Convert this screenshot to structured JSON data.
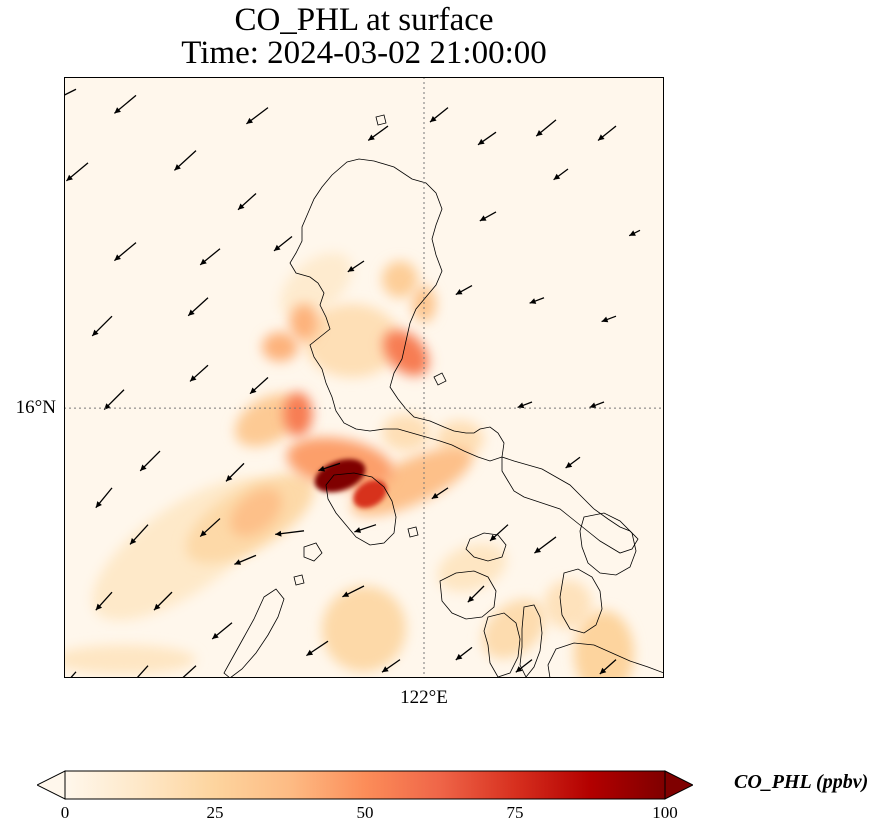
{
  "chart_data": {
    "type": "heatmap",
    "title": [
      "CO_PHL at surface",
      "Time: 2024-03-02 21:00:00"
    ],
    "xticks": [
      {
        "value": 122,
        "label": "122°E"
      }
    ],
    "yticks": [
      {
        "value": 16,
        "label": "16°N"
      }
    ],
    "xlim": [
      119.0,
      124.0
    ],
    "ylim": [
      13.8,
      18.7
    ],
    "grid": true,
    "colormap": "OrRd",
    "colorbar": {
      "label": "CO_PHL (ppbv)",
      "vmin": 0,
      "vmax": 100,
      "ticks": [
        0,
        25,
        50,
        75,
        100
      ],
      "extend": "both",
      "stops": [
        "#fff7ec",
        "#fee8c8",
        "#fdd49e",
        "#fdbb84",
        "#fc8d59",
        "#ef6548",
        "#d7301f",
        "#b30000",
        "#7f0000"
      ]
    },
    "plumes": [
      {
        "lon": 121.9,
        "lat": 15.4,
        "sx": 0.55,
        "sy": 0.18,
        "rot": -25,
        "value": 35
      },
      {
        "lon": 121.3,
        "lat": 15.55,
        "sx": 0.45,
        "sy": 0.2,
        "rot": 10,
        "value": 45
      },
      {
        "lon": 120.55,
        "lat": 15.1,
        "sx": 0.6,
        "sy": 0.25,
        "rot": -30,
        "value": 22
      },
      {
        "lon": 120.0,
        "lat": 14.85,
        "sx": 0.9,
        "sy": 0.35,
        "rot": -35,
        "value": 12
      },
      {
        "lon": 121.4,
        "lat": 16.55,
        "sx": 0.4,
        "sy": 0.3,
        "rot": 0,
        "value": 18
      },
      {
        "lon": 121.1,
        "lat": 17.0,
        "sx": 0.35,
        "sy": 0.2,
        "rot": -40,
        "value": 10
      },
      {
        "lon": 121.85,
        "lat": 16.45,
        "sx": 0.15,
        "sy": 0.22,
        "rot": -45,
        "value": 55
      },
      {
        "lon": 121.8,
        "lat": 17.05,
        "sx": 0.15,
        "sy": 0.15,
        "rot": 0,
        "value": 28
      },
      {
        "lon": 121.5,
        "lat": 14.2,
        "sx": 0.35,
        "sy": 0.35,
        "rot": 20,
        "value": 22
      },
      {
        "lon": 122.75,
        "lat": 14.2,
        "sx": 0.3,
        "sy": 0.2,
        "rot": -40,
        "value": 20
      },
      {
        "lon": 123.5,
        "lat": 14.0,
        "sx": 0.25,
        "sy": 0.35,
        "rot": 0,
        "value": 25
      },
      {
        "lon": 119.5,
        "lat": 13.95,
        "sx": 0.6,
        "sy": 0.12,
        "rot": 0,
        "value": 14
      },
      {
        "lon": 121.85,
        "lat": 15.8,
        "sx": 0.2,
        "sy": 0.15,
        "rot": 0,
        "value": 18
      },
      {
        "lon": 120.95,
        "lat": 15.95,
        "sx": 0.12,
        "sy": 0.18,
        "rot": 0,
        "value": 55
      },
      {
        "lon": 120.7,
        "lat": 15.9,
        "sx": 0.3,
        "sy": 0.18,
        "rot": -30,
        "value": 30
      },
      {
        "lon": 121.0,
        "lat": 16.7,
        "sx": 0.12,
        "sy": 0.15,
        "rot": 0,
        "value": 40
      },
      {
        "lon": 122.0,
        "lat": 16.85,
        "sx": 0.1,
        "sy": 0.15,
        "rot": 0,
        "value": 32
      },
      {
        "lon": 121.3,
        "lat": 15.45,
        "sx": 0.22,
        "sy": 0.12,
        "rot": -20,
        "value": 100
      },
      {
        "lon": 121.55,
        "lat": 15.3,
        "sx": 0.15,
        "sy": 0.1,
        "rot": -30,
        "value": 75
      },
      {
        "lon": 122.3,
        "lat": 15.75,
        "sx": 0.2,
        "sy": 0.15,
        "rot": 0,
        "value": 18
      },
      {
        "lon": 122.4,
        "lat": 14.7,
        "sx": 0.3,
        "sy": 0.18,
        "rot": -20,
        "value": 14
      },
      {
        "lon": 123.2,
        "lat": 14.4,
        "sx": 0.2,
        "sy": 0.2,
        "rot": 0,
        "value": 16
      },
      {
        "lon": 120.6,
        "lat": 15.15,
        "sx": 0.25,
        "sy": 0.15,
        "rot": -40,
        "value": 35
      },
      {
        "lon": 120.8,
        "lat": 16.5,
        "sx": 0.15,
        "sy": 0.12,
        "rot": 0,
        "value": 40
      }
    ],
    "wind_vectors": [
      {
        "lon": 119.1,
        "lat": 18.6,
        "u": -1.0,
        "v": -0.5
      },
      {
        "lon": 119.6,
        "lat": 18.55,
        "u": -1.2,
        "v": -1.0
      },
      {
        "lon": 120.7,
        "lat": 18.45,
        "u": -1.2,
        "v": -0.9
      },
      {
        "lon": 121.7,
        "lat": 18.3,
        "u": -1.1,
        "v": -0.8
      },
      {
        "lon": 122.2,
        "lat": 18.45,
        "u": -1.0,
        "v": -0.8
      },
      {
        "lon": 122.6,
        "lat": 18.25,
        "u": -1.0,
        "v": -0.7
      },
      {
        "lon": 123.1,
        "lat": 18.35,
        "u": -1.1,
        "v": -0.9
      },
      {
        "lon": 123.6,
        "lat": 18.3,
        "u": -1.0,
        "v": -0.8
      },
      {
        "lon": 119.2,
        "lat": 18.0,
        "u": -1.2,
        "v": -1.0
      },
      {
        "lon": 120.1,
        "lat": 18.1,
        "u": -1.2,
        "v": -1.1
      },
      {
        "lon": 120.6,
        "lat": 17.75,
        "u": -1.0,
        "v": -0.9
      },
      {
        "lon": 122.6,
        "lat": 17.6,
        "u": -0.9,
        "v": -0.5
      },
      {
        "lon": 123.2,
        "lat": 17.95,
        "u": -0.8,
        "v": -0.6
      },
      {
        "lon": 123.8,
        "lat": 17.45,
        "u": -0.6,
        "v": -0.3
      },
      {
        "lon": 119.6,
        "lat": 17.35,
        "u": -1.2,
        "v": -1.0
      },
      {
        "lon": 120.3,
        "lat": 17.3,
        "u": -1.1,
        "v": -0.9
      },
      {
        "lon": 120.9,
        "lat": 17.4,
        "u": -1.0,
        "v": -0.8
      },
      {
        "lon": 121.5,
        "lat": 17.2,
        "u": -0.9,
        "v": -0.6
      },
      {
        "lon": 122.4,
        "lat": 17.0,
        "u": -0.9,
        "v": -0.5
      },
      {
        "lon": 123.0,
        "lat": 16.9,
        "u": -0.8,
        "v": -0.3
      },
      {
        "lon": 123.6,
        "lat": 16.75,
        "u": -0.8,
        "v": -0.3
      },
      {
        "lon": 119.4,
        "lat": 16.75,
        "u": -1.1,
        "v": -1.1
      },
      {
        "lon": 120.2,
        "lat": 16.9,
        "u": -1.1,
        "v": -1.0
      },
      {
        "lon": 119.5,
        "lat": 16.15,
        "u": -1.1,
        "v": -1.1
      },
      {
        "lon": 120.2,
        "lat": 16.35,
        "u": -1.0,
        "v": -0.9
      },
      {
        "lon": 120.7,
        "lat": 16.25,
        "u": -1.0,
        "v": -0.9
      },
      {
        "lon": 122.9,
        "lat": 16.05,
        "u": -0.8,
        "v": -0.3
      },
      {
        "lon": 123.5,
        "lat": 16.05,
        "u": -0.8,
        "v": -0.3
      },
      {
        "lon": 119.8,
        "lat": 15.65,
        "u": -1.1,
        "v": -1.1
      },
      {
        "lon": 120.5,
        "lat": 15.55,
        "u": -1.0,
        "v": -1.0
      },
      {
        "lon": 121.3,
        "lat": 15.55,
        "u": -1.2,
        "v": -0.4
      },
      {
        "lon": 122.2,
        "lat": 15.35,
        "u": -0.9,
        "v": -0.6
      },
      {
        "lon": 123.3,
        "lat": 15.6,
        "u": -0.8,
        "v": -0.6
      },
      {
        "lon": 119.4,
        "lat": 15.35,
        "u": -0.9,
        "v": -1.1
      },
      {
        "lon": 119.7,
        "lat": 15.05,
        "u": -1.0,
        "v": -1.1
      },
      {
        "lon": 120.3,
        "lat": 15.1,
        "u": -1.1,
        "v": -1.0
      },
      {
        "lon": 121.0,
        "lat": 15.0,
        "u": -1.6,
        "v": -0.2
      },
      {
        "lon": 121.6,
        "lat": 15.05,
        "u": -1.2,
        "v": -0.4
      },
      {
        "lon": 123.1,
        "lat": 14.95,
        "u": -1.2,
        "v": -0.9
      },
      {
        "lon": 120.6,
        "lat": 14.8,
        "u": -1.2,
        "v": -0.5
      },
      {
        "lon": 121.5,
        "lat": 14.55,
        "u": -1.2,
        "v": -0.6
      },
      {
        "lon": 122.5,
        "lat": 14.55,
        "u": -0.9,
        "v": -0.9
      },
      {
        "lon": 119.4,
        "lat": 14.5,
        "u": -0.9,
        "v": -1.0
      },
      {
        "lon": 119.9,
        "lat": 14.5,
        "u": -1.0,
        "v": -1.0
      },
      {
        "lon": 120.4,
        "lat": 14.25,
        "u": -1.1,
        "v": -0.9
      },
      {
        "lon": 121.2,
        "lat": 14.1,
        "u": -1.2,
        "v": -0.8
      },
      {
        "lon": 121.8,
        "lat": 13.95,
        "u": -1.0,
        "v": -0.7
      },
      {
        "lon": 122.4,
        "lat": 14.05,
        "u": -0.9,
        "v": -0.7
      },
      {
        "lon": 122.9,
        "lat": 13.95,
        "u": -0.9,
        "v": -0.7
      },
      {
        "lon": 123.6,
        "lat": 13.95,
        "u": -0.9,
        "v": -0.8
      },
      {
        "lon": 119.1,
        "lat": 13.85,
        "u": -0.8,
        "v": -0.9
      },
      {
        "lon": 119.7,
        "lat": 13.9,
        "u": -0.9,
        "v": -1.0
      },
      {
        "lon": 120.1,
        "lat": 13.9,
        "u": -1.1,
        "v": -1.0
      },
      {
        "lon": 122.7,
        "lat": 15.05,
        "u": -1.0,
        "v": -0.9
      }
    ]
  }
}
